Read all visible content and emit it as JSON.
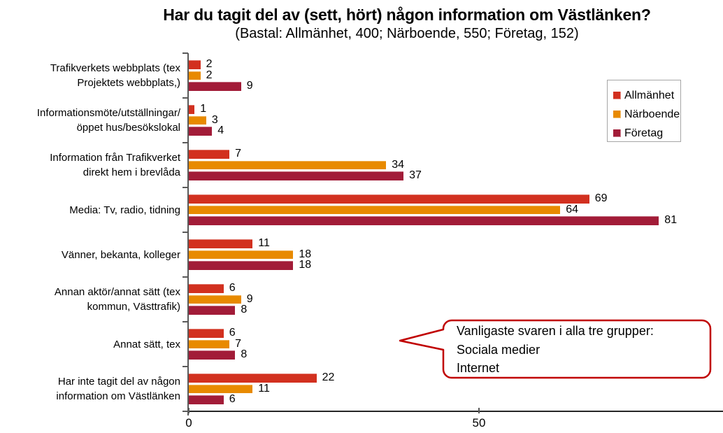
{
  "chart_data": {
    "type": "bar",
    "orientation": "horizontal",
    "title": "Har du tagit del av (sett, hört) någon information om Västlänken?",
    "subtitle": "(Bastal: Allmänhet, 400; Närboende, 550; Företag, 152)",
    "categories": [
      "Trafikverkets webbplats (tex\nProjektets webbplats,)",
      "Informationsmöte/utställningar/\nöppet hus/besökslokal",
      "Information från Trafikverket\ndirekt hem i brevlåda",
      "Media: Tv, radio, tidning",
      "Vänner, bekanta, kolleger",
      "Annan aktör/annat sätt (tex\nkommun, Västtrafik)",
      "Annat sätt, tex",
      "Har inte tagit del av någon\ninformation om Västlänken"
    ],
    "series": [
      {
        "name": "Allmänhet",
        "color": "#D2301F",
        "values": [
          2,
          1,
          7,
          69,
          11,
          6,
          6,
          22
        ]
      },
      {
        "name": "Närboende",
        "color": "#E88A00",
        "values": [
          2,
          3,
          34,
          64,
          18,
          9,
          7,
          11
        ]
      },
      {
        "name": "Företag",
        "color": "#A21C38",
        "values": [
          9,
          4,
          37,
          81,
          18,
          8,
          8,
          6
        ]
      }
    ],
    "xlim": [
      0,
      92
    ],
    "x_ticks": [
      0,
      50
    ],
    "grid": false,
    "value_labels": true,
    "legend_position": "top-right"
  },
  "annotation": {
    "lines": [
      "Vanligaste svaren i alla tre grupper:",
      "Sociala medier",
      "Internet"
    ],
    "border_color": "#C00000"
  },
  "colors": {
    "x_axis": "#262626",
    "y_axis": "#595959",
    "tick": "#595959",
    "legend_border": "#A6A6A6",
    "text": "#000000"
  }
}
